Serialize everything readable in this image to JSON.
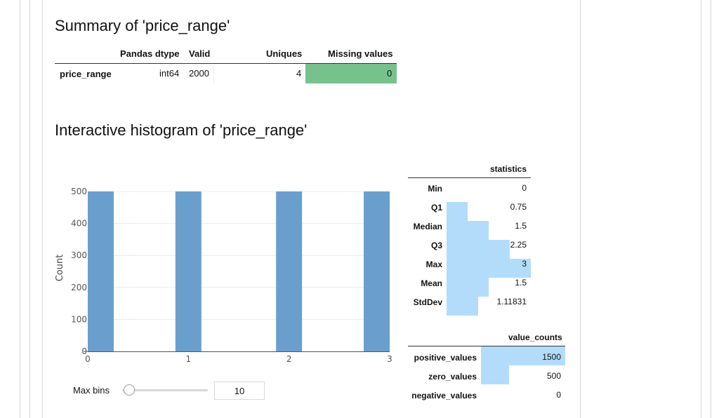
{
  "summary": {
    "title": "Summary of 'price_range'",
    "columns": [
      "Pandas dtype",
      "Valid",
      "Uniques",
      "Missing values"
    ],
    "row": {
      "name": "price_range",
      "dtype": "int64",
      "valid": "2000",
      "uniques": "4",
      "missing": "0"
    },
    "missing_color": "#77c28c"
  },
  "histogram": {
    "title": "Interactive histogram of 'price_range'",
    "bar_color": "#6a9fcd",
    "max_bins_label": "Max bins",
    "max_bins_value": "10"
  },
  "chart_data": {
    "type": "bar",
    "x": [
      0,
      1,
      2,
      3
    ],
    "values": [
      500,
      500,
      500,
      500
    ],
    "ylabel": "Count",
    "xlabel": "",
    "yticks": [
      "0",
      "100",
      "200",
      "300",
      "400",
      "500"
    ],
    "xticks": [
      "0",
      "1",
      "2",
      "3"
    ],
    "ylim": [
      0,
      500
    ],
    "xlim": [
      0,
      3
    ],
    "grid": true
  },
  "statistics": {
    "header": "statistics",
    "rows": [
      {
        "label": "Min",
        "value": "0",
        "fraction": 0
      },
      {
        "label": "Q1",
        "value": "0.75",
        "fraction": 0.25
      },
      {
        "label": "Median",
        "value": "1.5",
        "fraction": 0.5
      },
      {
        "label": "Q3",
        "value": "2.25",
        "fraction": 0.75
      },
      {
        "label": "Max",
        "value": "3",
        "fraction": 1
      },
      {
        "label": "Mean",
        "value": "1.5",
        "fraction": 0.5
      },
      {
        "label": "StdDev",
        "value": "1.11831",
        "fraction": 0.373
      }
    ],
    "bar_color": "#b3dcfa"
  },
  "value_counts": {
    "header": "value_counts",
    "rows": [
      {
        "label": "positive_values",
        "value": "1500",
        "fraction": 1
      },
      {
        "label": "zero_values",
        "value": "500",
        "fraction": 0.333
      },
      {
        "label": "negative_values",
        "value": "0",
        "fraction": 0
      }
    ]
  }
}
